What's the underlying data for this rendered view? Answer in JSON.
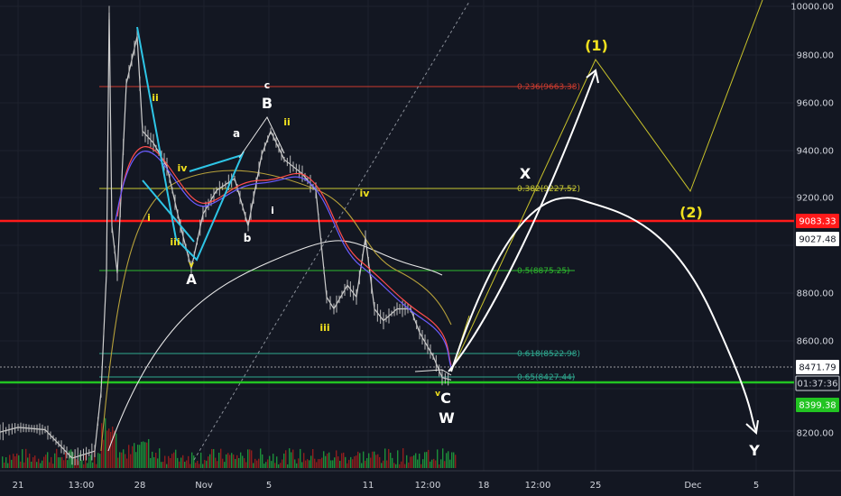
{
  "colors": {
    "background": "#131722",
    "price_line": "#cfcfcf",
    "grid": "#1e222d",
    "red_level": "#ff1a1a",
    "green_level": "#22c422",
    "fib_yellow": "#c8c832",
    "fib_green": "#2db82d",
    "fib_red": "#cc3b2e",
    "fib_teal": "#2fa88f",
    "wave_yellow": "#f0e01e",
    "wave_white": "#ffffff",
    "projection": "#ffffff",
    "volume_green": "#1d8f3a",
    "volume_red": "#8f1d1d"
  },
  "x_axis": {
    "ticks": [
      "21",
      "13:00",
      "28",
      "Nov",
      "5",
      "11",
      "12:00",
      "18",
      "12:00",
      "25",
      "Dec",
      "5"
    ]
  },
  "y_axis": {
    "ticks": [
      "10000.00",
      "9800.00",
      "9600.00",
      "9400.00",
      "9200.00",
      "8800.00",
      "8600.00",
      "8200.00"
    ]
  },
  "price_tags": [
    {
      "text": "9083.33",
      "kind": "red"
    },
    {
      "text": "9027.48",
      "kind": "white"
    },
    {
      "text": "8471.79",
      "kind": "white"
    },
    {
      "text": "01:37:36",
      "kind": "dark"
    },
    {
      "text": "8399.38",
      "kind": "green"
    }
  ],
  "fib_labels": [
    {
      "text": "0.236(9663.38)",
      "kind": "red"
    },
    {
      "text": "0.382(9227.52)",
      "kind": "yellow"
    },
    {
      "text": "0.5(8875.25)",
      "kind": "green"
    },
    {
      "text": "0.618(8522.98)",
      "kind": "teal"
    },
    {
      "text": "0.65(8427.44)",
      "kind": "teal"
    }
  ],
  "wave_labels": [
    {
      "text": "ii",
      "color": "yellow"
    },
    {
      "text": "iv",
      "color": "yellow"
    },
    {
      "text": "i",
      "color": "yellow"
    },
    {
      "text": "iii",
      "color": "yellow"
    },
    {
      "text": "v",
      "color": "yellow"
    },
    {
      "text": "A",
      "color": "white"
    },
    {
      "text": "a",
      "color": "white"
    },
    {
      "text": "b",
      "color": "white"
    },
    {
      "text": "c",
      "color": "white"
    },
    {
      "text": "B",
      "color": "white"
    },
    {
      "text": "ii",
      "color": "yellow"
    },
    {
      "text": "i",
      "color": "white"
    },
    {
      "text": "iii",
      "color": "yellow"
    },
    {
      "text": "iv",
      "color": "yellow"
    },
    {
      "text": "v",
      "color": "yellow"
    },
    {
      "text": "C",
      "color": "white"
    },
    {
      "text": "W",
      "color": "white"
    },
    {
      "text": "X",
      "color": "white"
    },
    {
      "text": "Y",
      "color": "white"
    },
    {
      "text": "(1)",
      "color": "yellow"
    },
    {
      "text": "(2)",
      "color": "yellow"
    }
  ],
  "chart_data": {
    "type": "line",
    "x_tick_labels": [
      "21",
      "13:00",
      "28",
      "Nov",
      "5",
      "11",
      "12:00",
      "18",
      "12:00",
      "25",
      "Dec",
      "5"
    ],
    "y_tick_labels": [
      "10000.00",
      "9800.00",
      "9600.00",
      "9400.00",
      "9200.00",
      "8800.00",
      "8600.00",
      "8200.00"
    ],
    "ylim": [
      8100,
      10030
    ],
    "grid": true,
    "price_series": {
      "points": [
        [
          0,
          8230
        ],
        [
          20,
          8250
        ],
        [
          50,
          8240
        ],
        [
          80,
          8120
        ],
        [
          105,
          8150
        ],
        [
          112,
          8400
        ],
        [
          118,
          8900
        ],
        [
          121,
          10000
        ],
        [
          124,
          9100
        ],
        [
          130,
          8900
        ],
        [
          140,
          9700
        ],
        [
          152,
          9900
        ],
        [
          158,
          9500
        ],
        [
          170,
          9450
        ],
        [
          185,
          9350
        ],
        [
          200,
          9100
        ],
        [
          212,
          8920
        ],
        [
          225,
          9150
        ],
        [
          240,
          9250
        ],
        [
          260,
          9300
        ],
        [
          275,
          9100
        ],
        [
          290,
          9400
        ],
        [
          300,
          9500
        ],
        [
          315,
          9380
        ],
        [
          335,
          9320
        ],
        [
          350,
          9250
        ],
        [
          362,
          8800
        ],
        [
          370,
          8750
        ],
        [
          385,
          8850
        ],
        [
          395,
          8800
        ],
        [
          405,
          9050
        ],
        [
          415,
          8750
        ],
        [
          425,
          8700
        ],
        [
          440,
          8750
        ],
        [
          455,
          8750
        ],
        [
          465,
          8650
        ],
        [
          480,
          8550
        ],
        [
          490,
          8460
        ],
        [
          500,
          8450
        ]
      ]
    },
    "levels": [
      {
        "name": "red_support",
        "value": 9083.33
      },
      {
        "name": "green_support",
        "value": 8399.38
      },
      {
        "name": "fib_0.236",
        "value": 9663.38
      },
      {
        "name": "fib_0.382",
        "value": 9227.52
      },
      {
        "name": "fib_0.5",
        "value": 8875.25
      },
      {
        "name": "fib_0.618",
        "value": 8522.98
      },
      {
        "name": "fib_0.65",
        "value": 8427.44
      }
    ],
    "projections": [
      {
        "name": "impulse_1_2",
        "points": [
          [
            500,
            8450
          ],
          [
            660,
            9780
          ],
          [
            765,
            9200
          ],
          [
            845,
            10030
          ]
        ]
      },
      {
        "name": "x_arc_to_y",
        "points": [
          [
            500,
            8440
          ],
          [
            540,
            8900
          ],
          [
            580,
            9100
          ],
          [
            640,
            9170
          ],
          [
            700,
            9100
          ],
          [
            770,
            8820
          ],
          [
            810,
            8600
          ],
          [
            840,
            8200
          ]
        ]
      },
      {
        "name": "up_arrow",
        "points": [
          [
            495,
            8440
          ],
          [
            560,
            8950
          ],
          [
            660,
            9760
          ]
        ]
      }
    ]
  }
}
